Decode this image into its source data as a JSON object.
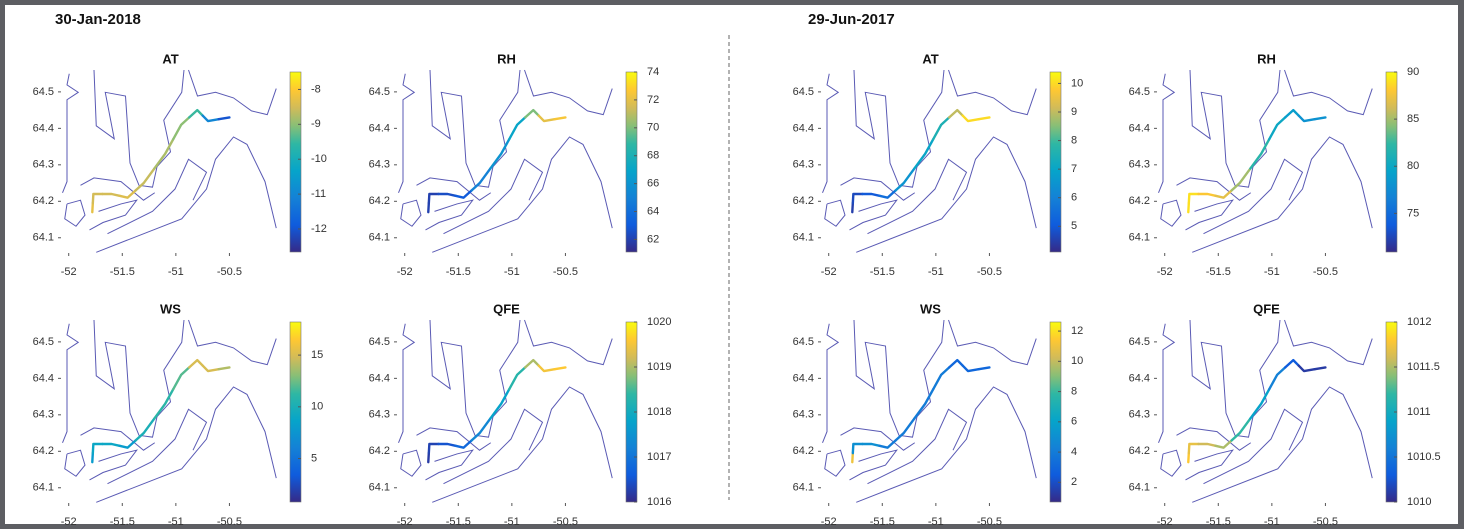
{
  "date_titles": [
    "30-Jan-2018",
    "29-Jun-2017"
  ],
  "track": {
    "lon": [
      -51.78,
      -51.77,
      -51.6,
      -51.45,
      -51.3,
      -51.1,
      -50.95,
      -50.8,
      -50.7,
      -50.5
    ],
    "lat": [
      64.17,
      64.22,
      64.22,
      64.21,
      64.25,
      64.33,
      64.41,
      64.45,
      64.42,
      64.43
    ]
  },
  "chart_data": [
    {
      "type": "map",
      "title": "AT",
      "xlim": [
        -52.1,
        -50.0
      ],
      "ylim": [
        64.05,
        64.56
      ],
      "xticks": [
        -52,
        -51.5,
        -51,
        -50.5
      ],
      "yticks": [
        64.1,
        64.2,
        64.3,
        64.4,
        64.5
      ],
      "colormap": "parula",
      "clim": [
        -12.66,
        -7.5
      ],
      "cticks": [
        -12,
        -11,
        -10,
        -9,
        -8
      ],
      "values": [
        -8.3,
        -8.5,
        -8.5,
        -8.4,
        -8.6,
        -8.8,
        -9.0,
        -9.5,
        -11,
        -12
      ]
    },
    {
      "type": "map",
      "title": "RH",
      "xlim": [
        -52.1,
        -50.0
      ],
      "ylim": [
        64.05,
        64.56
      ],
      "xticks": [
        -52,
        -51.5,
        -51,
        -50.5
      ],
      "yticks": [
        64.1,
        64.2,
        64.3,
        64.4,
        64.5
      ],
      "colormap": "parula",
      "clim": [
        61.1,
        74
      ],
      "cticks": [
        62,
        64,
        66,
        68,
        70,
        72,
        74
      ],
      "values": [
        62,
        62,
        62.5,
        63,
        65,
        66,
        67,
        70,
        72,
        72.5
      ]
    },
    {
      "type": "map",
      "title": "WS",
      "xlim": [
        -52.1,
        -50.0
      ],
      "ylim": [
        64.05,
        64.56
      ],
      "xticks": [
        -52,
        -51.5,
        -51,
        -50.5
      ],
      "yticks": [
        64.1,
        64.2,
        64.3,
        64.4,
        64.5
      ],
      "colormap": "parula",
      "clim": [
        0.8,
        18.2
      ],
      "cticks": [
        5,
        10,
        15
      ],
      "values": [
        8,
        9,
        9,
        8,
        10,
        11,
        12,
        15,
        15,
        14
      ]
    },
    {
      "type": "map",
      "title": "QFE",
      "xlim": [
        -52.1,
        -50.0
      ],
      "ylim": [
        64.05,
        64.56
      ],
      "xticks": [
        -52,
        -51.5,
        -51,
        -50.5
      ],
      "yticks": [
        64.1,
        64.2,
        64.3,
        64.4,
        64.5
      ],
      "colormap": "parula",
      "clim": [
        1016,
        1020
      ],
      "cticks": [
        1016,
        1017,
        1018,
        1019,
        1020
      ],
      "values": [
        1016.2,
        1016.3,
        1016.5,
        1016.8,
        1017.3,
        1017.8,
        1018.3,
        1019,
        1019.5,
        1019.6
      ]
    },
    {
      "type": "map",
      "title": "AT",
      "xlim": [
        -52.1,
        -50.0
      ],
      "ylim": [
        64.05,
        64.56
      ],
      "xticks": [
        -52,
        -51.5,
        -51,
        -50.5
      ],
      "yticks": [
        64.1,
        64.2,
        64.3,
        64.4,
        64.5
      ],
      "colormap": "parula",
      "clim": [
        4.1,
        10.4
      ],
      "cticks": [
        5,
        6,
        7,
        8,
        9,
        10
      ],
      "values": [
        4.5,
        4.7,
        5,
        5.5,
        6.5,
        7,
        7.5,
        9,
        10,
        10
      ]
    },
    {
      "type": "map",
      "title": "RH",
      "xlim": [
        -52.1,
        -50.0
      ],
      "ylim": [
        64.05,
        64.56
      ],
      "xticks": [
        -52,
        -51.5,
        -51,
        -50.5
      ],
      "yticks": [
        64.1,
        64.2,
        64.3,
        64.4,
        64.5
      ],
      "colormap": "parula",
      "clim": [
        70.9,
        90
      ],
      "cticks": [
        75,
        80,
        85,
        90
      ],
      "values": [
        89,
        89,
        88,
        87,
        85,
        82,
        80,
        79,
        78,
        78
      ]
    },
    {
      "type": "map",
      "title": "WS",
      "xlim": [
        -52.1,
        -50.0
      ],
      "ylim": [
        64.05,
        64.56
      ],
      "xticks": [
        -52,
        -51.5,
        -51,
        -50.5
      ],
      "yticks": [
        64.1,
        64.2,
        64.3,
        64.4,
        64.5
      ],
      "colormap": "parula",
      "clim": [
        0.7,
        12.6
      ],
      "cticks": [
        2,
        4,
        6,
        8,
        10,
        12
      ],
      "values": [
        11,
        5,
        5,
        4,
        4,
        4,
        4,
        3,
        3,
        3
      ]
    },
    {
      "type": "map",
      "title": "QFE",
      "xlim": [
        -52.1,
        -50.0
      ],
      "ylim": [
        64.05,
        64.56
      ],
      "xticks": [
        -52,
        -51.5,
        -51,
        -50.5
      ],
      "yticks": [
        64.1,
        64.2,
        64.3,
        64.4,
        64.5
      ],
      "colormap": "parula",
      "clim": [
        1010,
        1012
      ],
      "cticks": [
        1010,
        1010.5,
        1011,
        1011.5,
        1012
      ],
      "values": [
        1011.8,
        1011.7,
        1011.6,
        1011.5,
        1011.2,
        1010.9,
        1010.6,
        1010.3,
        1010.1,
        1010.1
      ]
    }
  ]
}
